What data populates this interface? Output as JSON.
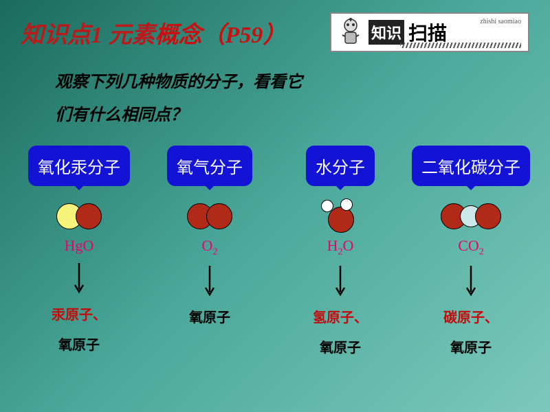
{
  "title": {
    "part1": "知识点1 元素",
    "part2": "概念",
    "part3": "（P59）"
  },
  "badge": {
    "box": "知识",
    "main": "扫描",
    "pinyin": "zhishi saomiao"
  },
  "question": {
    "line1": "观察下列几种物质的分子，看看它",
    "line2": "们有什么相同点？"
  },
  "colors": {
    "oxygen": "#b02a17",
    "mercury": "#f6f37a",
    "hydrogen": "#ffffff",
    "carbon": "#cde8e8",
    "bubble": "#1313d6",
    "formula": "#e6056c",
    "red_text": "#c40a0a",
    "black_text": "#000000"
  },
  "sizes": {
    "big_atom": 38,
    "small_atom": 18,
    "med_atom": 32
  },
  "molecules": [
    {
      "name": "氧化汞分子",
      "formula_base": "HgO",
      "formula_sub": "",
      "components": [
        {
          "text": "汞原子、",
          "color": "#c40a0a"
        },
        {
          "text": "氧原子",
          "color": "#000000"
        }
      ],
      "model": "hgo"
    },
    {
      "name": "氧气分子",
      "formula_base": "O",
      "formula_sub": "2",
      "components": [
        {
          "text": "氧原子",
          "color": "#000000"
        }
      ],
      "model": "o2"
    },
    {
      "name": "水分子",
      "formula_base": "H",
      "formula_sub": "2",
      "formula_tail": "O",
      "components": [
        {
          "text": "氢原子、",
          "color": "#c40a0a"
        },
        {
          "text": "氧原子",
          "color": "#000000"
        }
      ],
      "model": "h2o"
    },
    {
      "name": "二氧化碳分子",
      "formula_base": "CO",
      "formula_sub": "2",
      "components": [
        {
          "text": "碳原子、",
          "color": "#c40a0a"
        },
        {
          "text": "氧原子",
          "color": "#000000"
        }
      ],
      "model": "co2"
    }
  ]
}
